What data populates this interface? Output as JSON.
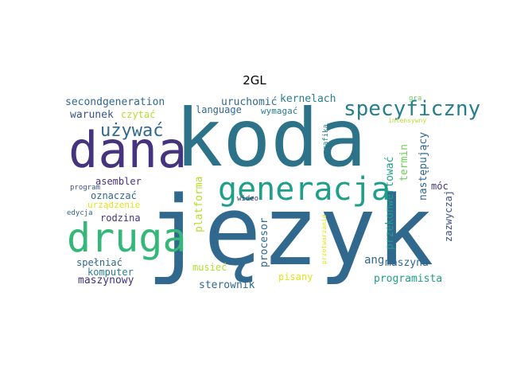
{
  "title": "2GL",
  "words": {
    "jezyk": "język",
    "koda": "koda",
    "dana": "dana",
    "druga": "druga",
    "generacja": "generacja",
    "specyficzny": "specyficzny",
    "uzywac": "używać",
    "secondgeneration": "secondgeneration",
    "warunek": "warunek",
    "czytac": "czytać",
    "uruchomic": "uruchomić",
    "kernelach": "kernelach",
    "language": "language",
    "wymagac": "wymagać",
    "gra": "gra",
    "intensywny": "intensywny",
    "grafika": "grafika",
    "asembler": "asembler",
    "program": "program",
    "oznaczac": "oznaczać",
    "urzadzenie": "urządzenie",
    "edycja": "edycja",
    "rodzina": "rodzina",
    "platforma": "platforma",
    "wideo": "wideo",
    "przekonwertowac": "przekonwertować",
    "termin": "termin",
    "nastepujacy": "następujący",
    "moc": "móc",
    "zazwyczaj": "zazwyczaj",
    "ang": "ang",
    "maszyna": "maszyna",
    "spelniac": "spełniać",
    "komputer": "komputer",
    "maszynowy": "maszynowy",
    "musiec": "musieć",
    "procesor": "procesor",
    "pisany": "pisany",
    "przetwarzanie": "przetwarzanie",
    "programista": "programista",
    "sterownik": "sterownik"
  },
  "colors": {
    "dark_purple": "#45337e",
    "indigo": "#3b528b",
    "blue": "#31688e",
    "teal": "#277f8e",
    "teal_green": "#1f9e89",
    "green": "#35b779",
    "light_green": "#6ece58",
    "yellow_green": "#b5de2b",
    "yellow": "#e2e418"
  }
}
